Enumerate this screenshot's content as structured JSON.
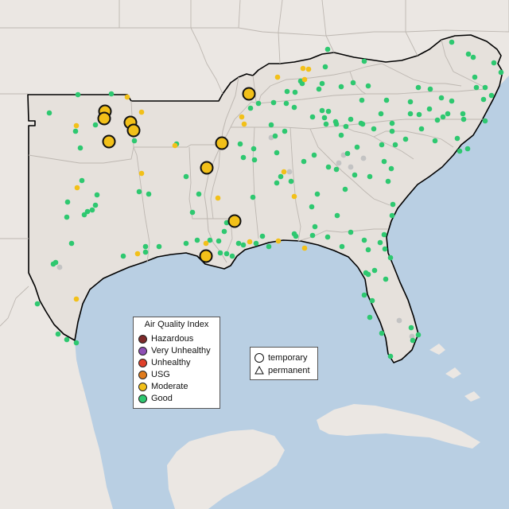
{
  "map": {
    "region": "Southeastern United States",
    "colors": {
      "ocean": "#b9cfe3",
      "land": "#e6e1dc",
      "land_outer": "#ebe7e3",
      "state_border": "#bdb7b1",
      "region_border": "#000000",
      "Hazardous": "#7e2a2a",
      "Very Unhealthy": "#8e4fb5",
      "Unhealthy": "#e0402b",
      "USG": "#e07b1c",
      "Moderate": "#f2c019",
      "Good": "#2ec870",
      "No data": "#c3c3c3"
    },
    "markers": {
      "large_moderate": [
        [
          132,
          140
        ],
        [
          131,
          149
        ],
        [
          164,
          154
        ],
        [
          168,
          164
        ],
        [
          137,
          178
        ],
        [
          313,
          118
        ],
        [
          279,
          180
        ],
        [
          260,
          211
        ],
        [
          295,
          278
        ],
        [
          259,
          322
        ]
      ],
      "small_moderate": [
        [
          160,
          122
        ],
        [
          178,
          141
        ],
        [
          96,
          158
        ],
        [
          220,
          183
        ],
        [
          178,
          218
        ],
        [
          97,
          236
        ],
        [
          274,
          249
        ],
        [
          349,
          97
        ],
        [
          381,
          86
        ],
        [
          388,
          87
        ],
        [
          383,
          100
        ],
        [
          304,
          147
        ],
        [
          307,
          156
        ],
        [
          357,
          216
        ],
        [
          370,
          247
        ],
        [
          314,
          304
        ],
        [
          350,
          303
        ],
        [
          383,
          312
        ],
        [
          259,
          306
        ],
        [
          96,
          376
        ],
        [
          173,
          319
        ]
      ],
      "small_good": [
        [
          98,
          119
        ],
        [
          140,
          118
        ],
        [
          62,
          142
        ],
        [
          95,
          165
        ],
        [
          101,
          186
        ],
        [
          120,
          157
        ],
        [
          169,
          177
        ],
        [
          222,
          181
        ],
        [
          103,
          227
        ],
        [
          85,
          254
        ],
        [
          175,
          241
        ],
        [
          187,
          244
        ],
        [
          122,
          245
        ],
        [
          120,
          258
        ],
        [
          116,
          264
        ],
        [
          110,
          266
        ],
        [
          106,
          270
        ],
        [
          90,
          306
        ],
        [
          84,
          273
        ],
        [
          70,
          330
        ],
        [
          67,
          332
        ],
        [
          155,
          322
        ],
        [
          183,
          310
        ],
        [
          183,
          317
        ],
        [
          200,
          310
        ],
        [
          234,
          306
        ],
        [
          248,
          302
        ],
        [
          277,
          318
        ],
        [
          285,
          319
        ],
        [
          300,
          306
        ],
        [
          292,
          322
        ],
        [
          306,
          308
        ],
        [
          264,
          302
        ],
        [
          275,
          303
        ],
        [
          285,
          280
        ],
        [
          282,
          291
        ],
        [
          234,
          222
        ],
        [
          250,
          244
        ],
        [
          242,
          267
        ],
        [
          318,
          248
        ],
        [
          319,
          187
        ],
        [
          302,
          181
        ],
        [
          306,
          198
        ],
        [
          320,
          201
        ],
        [
          325,
          130
        ],
        [
          344,
          129
        ],
        [
          360,
          130
        ],
        [
          370,
          135
        ],
        [
          358,
          165
        ],
        [
          346,
          171
        ],
        [
          348,
          192
        ],
        [
          353,
          222
        ],
        [
          348,
          230
        ],
        [
          341,
          157
        ],
        [
          315,
          136
        ],
        [
          412,
          62
        ],
        [
          458,
          77
        ],
        [
          409,
          84
        ],
        [
          380,
          105
        ],
        [
          371,
          116
        ],
        [
          361,
          115
        ],
        [
          405,
          105
        ],
        [
          401,
          112
        ],
        [
          393,
          147
        ],
        [
          405,
          139
        ],
        [
          413,
          140
        ],
        [
          423,
          156
        ],
        [
          435,
          159
        ],
        [
          455,
          126
        ],
        [
          486,
          126
        ],
        [
          463,
          108
        ],
        [
          444,
          104
        ],
        [
          429,
          109
        ],
        [
          441,
          150
        ],
        [
          456,
          156
        ],
        [
          479,
          143
        ],
        [
          493,
          165
        ],
        [
          470,
          162
        ],
        [
          454,
          155
        ],
        [
          516,
          128
        ],
        [
          516,
          143
        ],
        [
          527,
          144
        ],
        [
          540,
          137
        ],
        [
          550,
          151
        ],
        [
          557,
          147
        ],
        [
          563,
          143
        ],
        [
          583,
          150
        ],
        [
          608,
          125
        ],
        [
          610,
          110
        ],
        [
          597,
          97
        ],
        [
          595,
          72
        ],
        [
          589,
          68
        ],
        [
          621,
          79
        ],
        [
          630,
          91
        ],
        [
          618,
          120
        ],
        [
          599,
          110
        ],
        [
          568,
          53
        ],
        [
          541,
          112
        ],
        [
          526,
          110
        ],
        [
          555,
          123
        ],
        [
          568,
          127
        ],
        [
          582,
          143
        ],
        [
          530,
          162
        ],
        [
          493,
          155
        ],
        [
          497,
          182
        ],
        [
          510,
          175
        ],
        [
          480,
          182
        ],
        [
          483,
          203
        ],
        [
          492,
          212
        ],
        [
          488,
          228
        ],
        [
          465,
          222
        ],
        [
          449,
          185
        ],
        [
          437,
          193
        ],
        [
          413,
          210
        ],
        [
          423,
          213
        ],
        [
          446,
          220
        ],
        [
          434,
          238
        ],
        [
          399,
          244
        ],
        [
          392,
          260
        ],
        [
          396,
          285
        ],
        [
          424,
          271
        ],
        [
          441,
          292
        ],
        [
          458,
          302
        ],
        [
          463,
          314
        ],
        [
          478,
          305
        ],
        [
          483,
          295
        ],
        [
          484,
          313
        ],
        [
          491,
          324
        ],
        [
          485,
          351
        ],
        [
          471,
          340
        ],
        [
          460,
          343
        ],
        [
          458,
          371
        ],
        [
          468,
          378
        ],
        [
          465,
          399
        ],
        [
          480,
          419
        ],
        [
          491,
          448
        ],
        [
          519,
          428
        ],
        [
          526,
          421
        ],
        [
          517,
          412
        ],
        [
          430,
          310
        ],
        [
          412,
          298
        ],
        [
          393,
          296
        ],
        [
          372,
          297
        ],
        [
          338,
          310
        ],
        [
          322,
          306
        ],
        [
          330,
          297
        ],
        [
          370,
          294
        ],
        [
          395,
          195
        ],
        [
          429,
          170
        ],
        [
          422,
          153
        ],
        [
          410,
          156
        ],
        [
          382,
          203
        ],
        [
          366,
          228
        ],
        [
          408,
          148
        ],
        [
          494,
          257
        ],
        [
          493,
          271
        ],
        [
          578,
          190
        ],
        [
          547,
          177
        ],
        [
          575,
          174
        ],
        [
          610,
          152
        ],
        [
          588,
          187
        ],
        [
          47,
          382
        ],
        [
          73,
          420
        ],
        [
          84,
          427
        ],
        [
          96,
          431
        ],
        [
          463,
          345
        ],
        [
          378,
          102
        ]
      ],
      "grey_nodata": [
        [
          341,
          173
        ],
        [
          364,
          216
        ],
        [
          426,
          205
        ],
        [
          432,
          195
        ],
        [
          457,
          199
        ],
        [
          441,
          210
        ],
        [
          75,
          336
        ],
        [
          502,
          403
        ],
        [
          518,
          423
        ]
      ]
    }
  },
  "legend": {
    "title": "Air Quality Index",
    "items": [
      {
        "label": "Hazardous",
        "color": "#7e2a2a"
      },
      {
        "label": "Very Unhealthy",
        "color": "#8e4fb5"
      },
      {
        "label": "Unhealthy",
        "color": "#e0402b"
      },
      {
        "label": "USG",
        "color": "#e07b1c"
      },
      {
        "label": "Moderate",
        "color": "#f2c019"
      },
      {
        "label": "Good",
        "color": "#2ec870"
      }
    ]
  },
  "shape_legend": {
    "temporary_label": "temporary",
    "permanent_label": "permanent"
  }
}
